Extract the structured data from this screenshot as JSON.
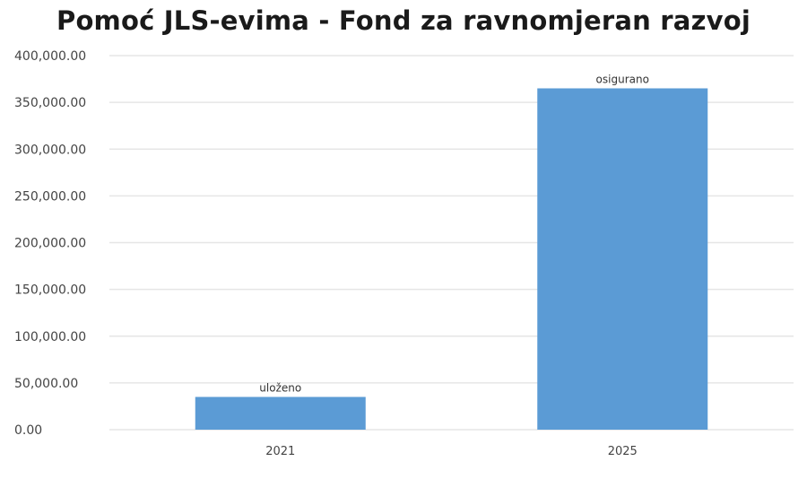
{
  "chart_data": {
    "type": "bar",
    "title": "Pomoć JLS-evima - Fond za ravnomjeran razvoj",
    "categories": [
      "2021",
      "2025"
    ],
    "values": [
      35000,
      365000
    ],
    "data_labels": [
      "uloženo",
      "osigurano"
    ],
    "ylim": [
      0,
      400000
    ],
    "yticks": [
      0,
      50000,
      100000,
      150000,
      200000,
      250000,
      300000,
      350000,
      400000
    ],
    "ytick_labels": [
      "0.00",
      "50,000.00",
      "100,000.00",
      "150,000.00",
      "200,000.00",
      "250,000.00",
      "300,000.00",
      "350,000.00",
      "400,000.00"
    ],
    "grid": true,
    "bar_color": "#5b9bd5",
    "grid_color": "#e6e6e6"
  }
}
